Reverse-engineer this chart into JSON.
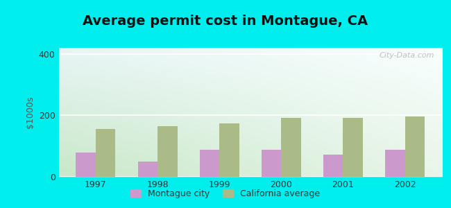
{
  "title": "Average permit cost in Montague, CA",
  "years": [
    1997,
    1998,
    1999,
    2000,
    2001,
    2002
  ],
  "montague_values": [
    80,
    50,
    88,
    88,
    72,
    88
  ],
  "california_values": [
    155,
    165,
    175,
    192,
    192,
    197
  ],
  "montague_color": "#cc99cc",
  "california_color": "#aabb88",
  "ylabel": "$1000s",
  "ylim": [
    0,
    420
  ],
  "yticks": [
    0,
    200,
    400
  ],
  "outer_bg": "#00eeee",
  "bar_width": 0.32,
  "legend_montague": "Montague city",
  "legend_california": "California average",
  "watermark": "City-Data.com",
  "title_fontsize": 14,
  "axis_label_fontsize": 9,
  "tick_fontsize": 9
}
